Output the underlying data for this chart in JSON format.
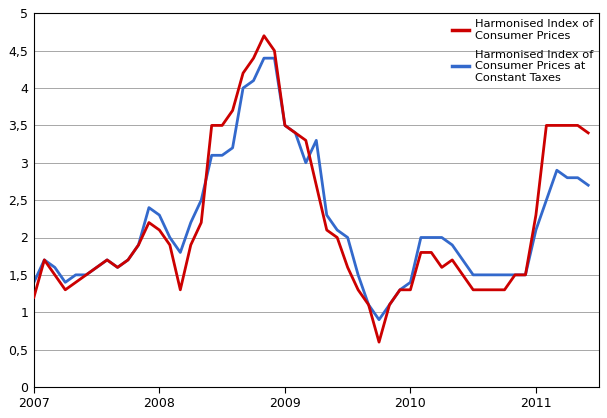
{
  "hicp": [
    1.2,
    1.7,
    1.5,
    1.3,
    1.4,
    1.5,
    1.6,
    1.7,
    1.6,
    1.7,
    1.9,
    2.2,
    2.1,
    1.9,
    1.3,
    1.9,
    2.2,
    3.5,
    3.5,
    3.7,
    4.2,
    4.4,
    4.7,
    4.5,
    3.5,
    3.4,
    3.3,
    2.7,
    2.1,
    2.0,
    1.6,
    1.3,
    1.1,
    0.6,
    1.1,
    1.3,
    1.3,
    1.8,
    1.8,
    1.6,
    1.7,
    1.5,
    1.3,
    1.3,
    1.3,
    1.3,
    1.5,
    1.5,
    2.3,
    3.5,
    3.5,
    3.5,
    3.5,
    3.4
  ],
  "hicpct": [
    1.4,
    1.7,
    1.6,
    1.4,
    1.5,
    1.5,
    1.6,
    1.7,
    1.6,
    1.7,
    1.9,
    2.4,
    2.3,
    2.0,
    1.8,
    2.2,
    2.5,
    3.1,
    3.1,
    3.2,
    4.0,
    4.1,
    4.4,
    4.4,
    3.5,
    3.4,
    3.0,
    3.3,
    2.3,
    2.1,
    2.0,
    1.5,
    1.1,
    0.9,
    1.1,
    1.3,
    1.4,
    2.0,
    2.0,
    2.0,
    1.9,
    1.7,
    1.5,
    1.5,
    1.5,
    1.5,
    1.5,
    1.5,
    2.1,
    2.5,
    2.9,
    2.8,
    2.8,
    2.7
  ],
  "hicp_color": "#cc0000",
  "hicpct_color": "#3369cc",
  "ylim": [
    0,
    5
  ],
  "yticks": [
    0,
    0.5,
    1.0,
    1.5,
    2.0,
    2.5,
    3.0,
    3.5,
    4.0,
    4.5,
    5.0
  ],
  "ytick_labels": [
    "0",
    "0,5",
    "1",
    "1,5",
    "2",
    "2,5",
    "3",
    "3,5",
    "4",
    "4,5",
    "5"
  ],
  "xtick_years": [
    2007,
    2008,
    2009,
    2010,
    2011
  ],
  "legend1_label": "Harmonised Index of\nConsumer Prices",
  "legend2_label": "Harmonised Index of\nConsumer Prices at\nConstant Taxes",
  "line_width": 2.0,
  "bg_color": "#ffffff",
  "grid_color": "#999999",
  "border_color": "#000000"
}
